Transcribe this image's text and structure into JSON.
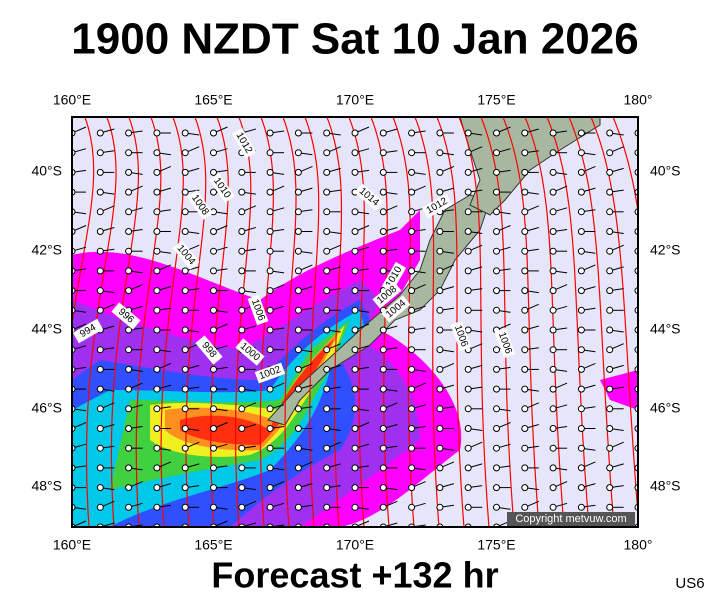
{
  "title": "1900 NZDT Sat 10 Jan 2026",
  "axes": {
    "top": [
      "160°E",
      "165°E",
      "170°E",
      "175°E",
      "180°"
    ],
    "bottom": [
      "160°E",
      "165°E",
      "170°E",
      "175°E",
      "180°"
    ],
    "left": [
      "40°S",
      "42°S",
      "44°S",
      "46°S",
      "48°S"
    ],
    "right": [
      "40°S",
      "42°S",
      "44°S",
      "46°S",
      "48°S"
    ]
  },
  "isobar_labels": [
    "1012",
    "1010",
    "1008",
    "1004",
    "996",
    "994",
    "998",
    "1006",
    "1000",
    "1002",
    "1014",
    "1012",
    "1010",
    "1008",
    "1004",
    "1006",
    "1006"
  ],
  "copyright": "Copyright metvuw.com",
  "footer": "Forecast +132 hr",
  "code": "US6"
}
